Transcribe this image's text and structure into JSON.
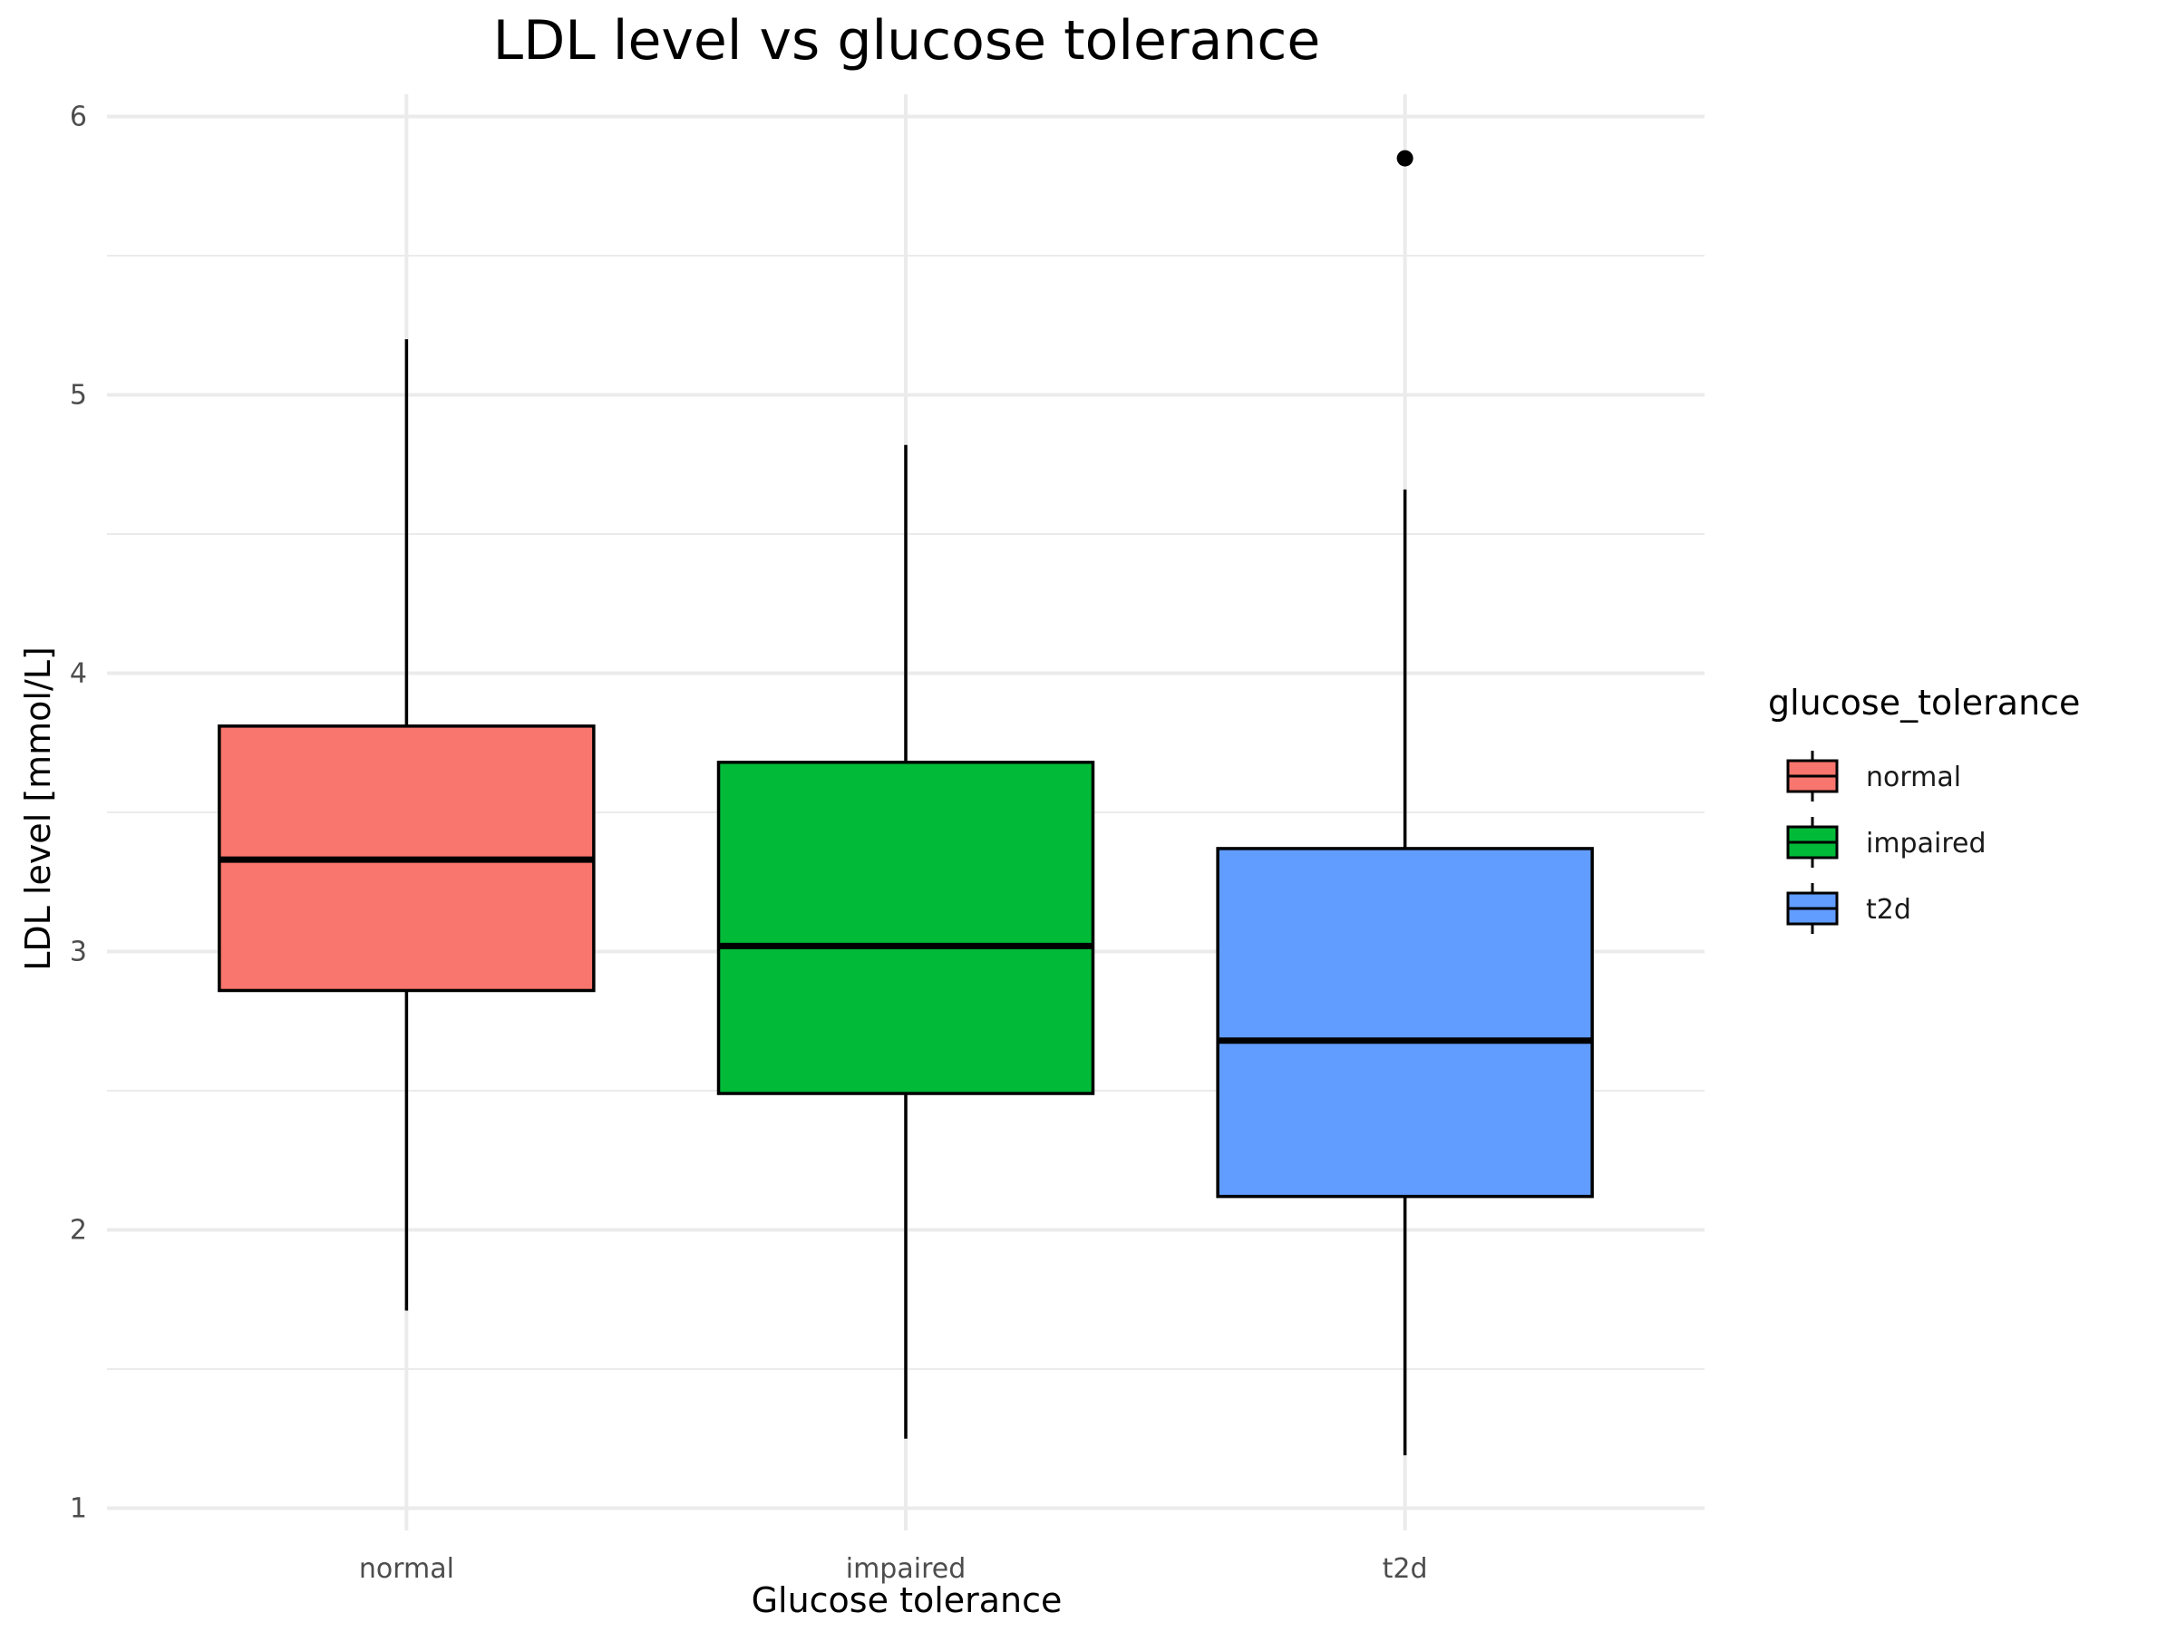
{
  "chart_data": {
    "type": "boxplot",
    "title": "LDL level vs glucose tolerance",
    "xlabel": "Glucose tolerance",
    "ylabel": "LDL level [mmol/L]",
    "ylim": [
      0.92,
      6.08
    ],
    "yticks": [
      1,
      2,
      3,
      4,
      5,
      6
    ],
    "grid": true,
    "legend": {
      "title": "glucose_tolerance",
      "position": "right"
    },
    "categories": [
      "normal",
      "impaired",
      "t2d"
    ],
    "series": [
      {
        "name": "normal",
        "color": "#F8766D",
        "whisker_low": 1.71,
        "q1": 2.86,
        "median": 3.33,
        "q3": 3.81,
        "whisker_high": 5.2,
        "outliers": []
      },
      {
        "name": "impaired",
        "color": "#00BA38",
        "whisker_low": 1.25,
        "q1": 2.49,
        "median": 3.02,
        "q3": 3.68,
        "whisker_high": 4.82,
        "outliers": []
      },
      {
        "name": "t2d",
        "color": "#619CFF",
        "whisker_low": 1.19,
        "q1": 2.12,
        "median": 2.68,
        "q3": 3.37,
        "whisker_high": 4.66,
        "outliers": [
          5.85
        ]
      }
    ]
  }
}
